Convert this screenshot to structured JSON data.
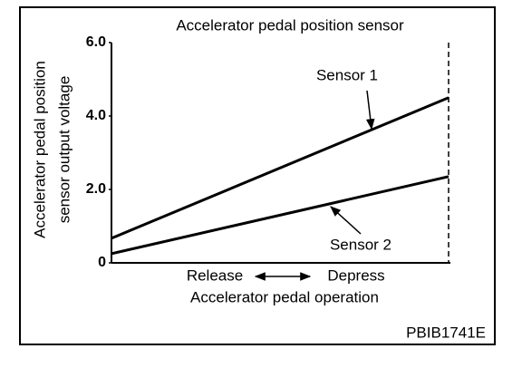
{
  "chart_data": {
    "type": "line",
    "title": "Accelerator pedal position sensor",
    "y_label": [
      "Accelerator pedal position",
      "sensor output voltage"
    ],
    "x_label": "Accelerator pedal operation",
    "categories": [
      "Release",
      "Depress"
    ],
    "series": [
      {
        "name": "Sensor 1",
        "color": "#000000",
        "values": [
          0.67,
          4.5
        ]
      },
      {
        "name": "Sensor 2",
        "color": "#000000",
        "values": [
          0.25,
          2.35
        ]
      }
    ],
    "ylim": [
      0,
      6
    ],
    "yticks": [
      0,
      {
        "value": 2,
        "label": "2.0"
      },
      {
        "value": 4,
        "label": "4.0"
      },
      {
        "value": 6,
        "label": "6.0"
      }
    ],
    "annotation": "PBIB1741E"
  }
}
